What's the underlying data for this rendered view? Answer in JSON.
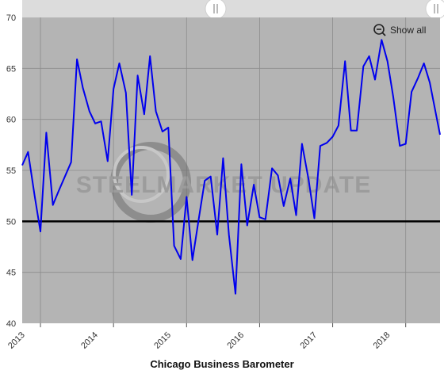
{
  "colors": {
    "plot_bg": "#b4b4b4",
    "line": "#0000ee",
    "reference_line": "#000000",
    "grid": "#8c8c8c",
    "scrollbar_track": "#dcdcdc"
  },
  "show_all_label": "Show all",
  "zoom_icon": "zoom-out-icon",
  "watermark": "STEELMARKET UPDATE",
  "chart_data": {
    "type": "line",
    "title": "Chicago Business Barometer",
    "xlabel": "",
    "ylabel": "",
    "x_ticks": [
      "2013",
      "2014",
      "2015",
      "2016",
      "2017",
      "2018"
    ],
    "xlim": [
      2012.75,
      2018.47
    ],
    "ylim": [
      40,
      70
    ],
    "y_ticks": [
      40,
      45,
      50,
      55,
      60,
      65,
      70
    ],
    "reference_line": 50,
    "grid": true,
    "series": [
      {
        "name": "",
        "x": [
          2012.75,
          2012.83,
          2012.92,
          2013.0,
          2013.08,
          2013.17,
          2013.25,
          2013.42,
          2013.5,
          2013.58,
          2013.67,
          2013.75,
          2013.83,
          2013.92,
          2014.0,
          2014.08,
          2014.17,
          2014.25,
          2014.33,
          2014.42,
          2014.5,
          2014.58,
          2014.67,
          2014.75,
          2014.83,
          2014.92,
          2015.0,
          2015.08,
          2015.17,
          2015.25,
          2015.33,
          2015.42,
          2015.5,
          2015.58,
          2015.67,
          2015.75,
          2015.83,
          2015.92,
          2016.0,
          2016.08,
          2016.17,
          2016.25,
          2016.33,
          2016.42,
          2016.5,
          2016.58,
          2016.67,
          2016.75,
          2016.83,
          2016.92,
          2017.0,
          2017.08,
          2017.17,
          2017.25,
          2017.33,
          2017.42,
          2017.5,
          2017.58,
          2017.67,
          2017.75,
          2017.83,
          2017.92,
          2018.0,
          2018.08,
          2018.17,
          2018.25,
          2018.33,
          2018.42,
          2018.47
        ],
        "values": [
          55.5,
          56.8,
          52.5,
          49.0,
          58.7,
          51.6,
          53.0,
          55.8,
          65.9,
          63.1,
          60.8,
          59.6,
          59.8,
          55.9,
          63.0,
          65.5,
          62.6,
          52.6,
          64.3,
          60.5,
          66.2,
          60.8,
          58.8,
          59.2,
          47.6,
          46.3,
          52.4,
          46.2,
          50.4,
          54.0,
          54.4,
          48.7,
          56.2,
          48.7,
          42.9,
          55.6,
          49.6,
          53.6,
          50.4,
          50.2,
          55.2,
          54.5,
          51.5,
          54.2,
          50.6,
          57.6,
          54.1,
          50.3,
          57.4,
          57.7,
          58.3,
          59.4,
          65.7,
          58.9,
          58.9,
          65.2,
          66.2,
          63.9,
          67.8,
          65.7,
          62.2,
          57.4,
          57.6,
          62.7,
          64.1,
          65.5,
          63.6,
          60.3,
          58.5
        ]
      }
    ]
  }
}
